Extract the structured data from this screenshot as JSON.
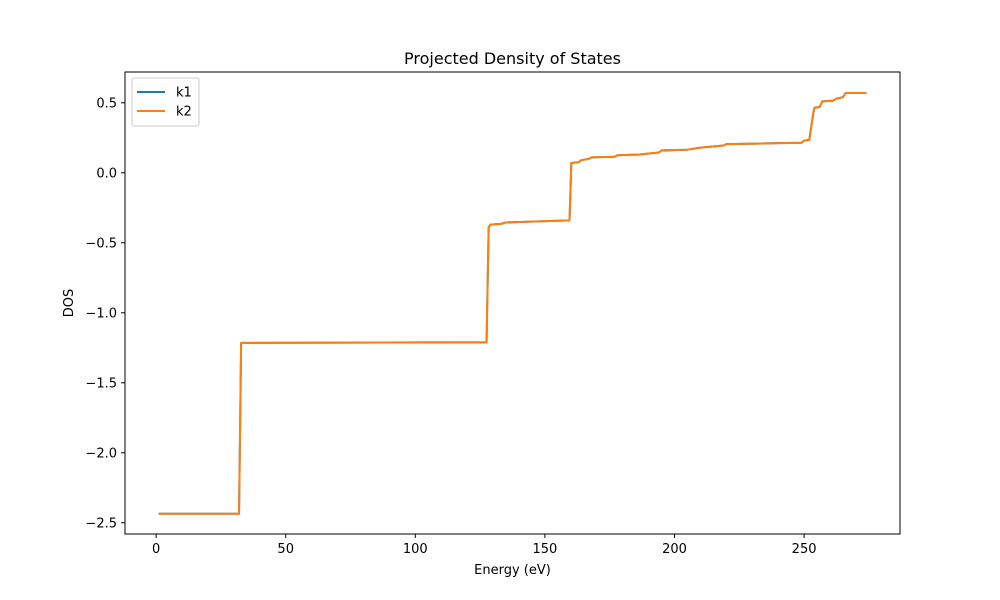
{
  "chart_data": {
    "type": "line",
    "title": "Projected Density of States",
    "xlabel": "Energy (eV)",
    "ylabel": "DOS",
    "xlim": [
      -12,
      287
    ],
    "ylim": [
      -2.58,
      0.72
    ],
    "xticks": [
      0,
      50,
      100,
      150,
      200,
      250
    ],
    "xtick_labels": [
      "0",
      "50",
      "100",
      "150",
      "200",
      "250"
    ],
    "yticks": [
      -2.5,
      -2.0,
      -1.5,
      -1.0,
      -0.5,
      0.0,
      0.5
    ],
    "ytick_labels": [
      "−2.5",
      "−2.0",
      "−1.5",
      "−1.0",
      "−0.5",
      "0.0",
      "0.5"
    ],
    "grid": false,
    "legend": "top-left",
    "series": [
      {
        "name": "k1",
        "color": "#1f77b4",
        "points": [
          [
            1,
            -2.435
          ],
          [
            32,
            -2.435
          ],
          [
            32.8,
            -1.215
          ],
          [
            127.5,
            -1.21
          ],
          [
            128.3,
            -0.39
          ],
          [
            129,
            -0.37
          ],
          [
            133,
            -0.365
          ],
          [
            135,
            -0.355
          ],
          [
            159.5,
            -0.34
          ],
          [
            160.2,
            0.07
          ],
          [
            163,
            0.075
          ],
          [
            164,
            0.09
          ],
          [
            167,
            0.1
          ],
          [
            168,
            0.11
          ],
          [
            177,
            0.115
          ],
          [
            178,
            0.125
          ],
          [
            186,
            0.13
          ],
          [
            194,
            0.145
          ],
          [
            195,
            0.16
          ],
          [
            205,
            0.165
          ],
          [
            210,
            0.18
          ],
          [
            219,
            0.195
          ],
          [
            220,
            0.205
          ],
          [
            235,
            0.21
          ],
          [
            249,
            0.215
          ],
          [
            250,
            0.23
          ],
          [
            252,
            0.235
          ],
          [
            253.5,
            0.42
          ],
          [
            254,
            0.465
          ],
          [
            256,
            0.47
          ],
          [
            257,
            0.51
          ],
          [
            261,
            0.515
          ],
          [
            262.5,
            0.53
          ],
          [
            265,
            0.54
          ],
          [
            266,
            0.57
          ],
          [
            274,
            0.57
          ]
        ]
      },
      {
        "name": "k2",
        "color": "#ff7f0e",
        "points": [
          [
            1,
            -2.435
          ],
          [
            32,
            -2.435
          ],
          [
            32.8,
            -1.215
          ],
          [
            127.5,
            -1.21
          ],
          [
            128.3,
            -0.39
          ],
          [
            129,
            -0.37
          ],
          [
            133,
            -0.365
          ],
          [
            135,
            -0.355
          ],
          [
            159.5,
            -0.34
          ],
          [
            160.2,
            0.07
          ],
          [
            163,
            0.075
          ],
          [
            164,
            0.09
          ],
          [
            167,
            0.1
          ],
          [
            168,
            0.11
          ],
          [
            177,
            0.115
          ],
          [
            178,
            0.125
          ],
          [
            186,
            0.13
          ],
          [
            194,
            0.145
          ],
          [
            195,
            0.16
          ],
          [
            205,
            0.165
          ],
          [
            210,
            0.18
          ],
          [
            219,
            0.195
          ],
          [
            220,
            0.205
          ],
          [
            235,
            0.21
          ],
          [
            249,
            0.215
          ],
          [
            250,
            0.23
          ],
          [
            252,
            0.235
          ],
          [
            253.5,
            0.42
          ],
          [
            254,
            0.465
          ],
          [
            256,
            0.47
          ],
          [
            257,
            0.51
          ],
          [
            261,
            0.515
          ],
          [
            262.5,
            0.53
          ],
          [
            265,
            0.54
          ],
          [
            266,
            0.57
          ],
          [
            274,
            0.57
          ]
        ]
      }
    ]
  }
}
